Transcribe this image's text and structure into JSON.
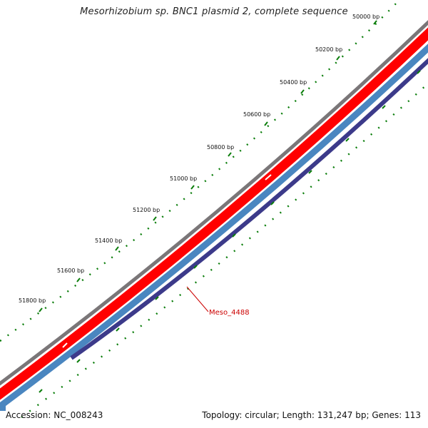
{
  "title": "Mesorhizobium sp. BNC1 plasmid 2, complete sequence",
  "accession": "Accession: NC_008243",
  "summary": "Topology: circular; Length: 131,247 bp; Genes: 113",
  "tick_labels": [
    "50000 bp",
    "50200 bp",
    "50400 bp",
    "50600 bp",
    "50800 bp",
    "51000 bp",
    "51200 bp",
    "51400 bp",
    "51600 bp",
    "51800 bp"
  ],
  "gene_label": "Meso_4488",
  "colors": {
    "backbone": "#7a7678",
    "forward_cds": "#ff0000",
    "reverse_cds": "#4a86c0",
    "reverse_inner": "#3c3a8a",
    "tick": "#0a7d0a",
    "label": "#cc0000"
  }
}
